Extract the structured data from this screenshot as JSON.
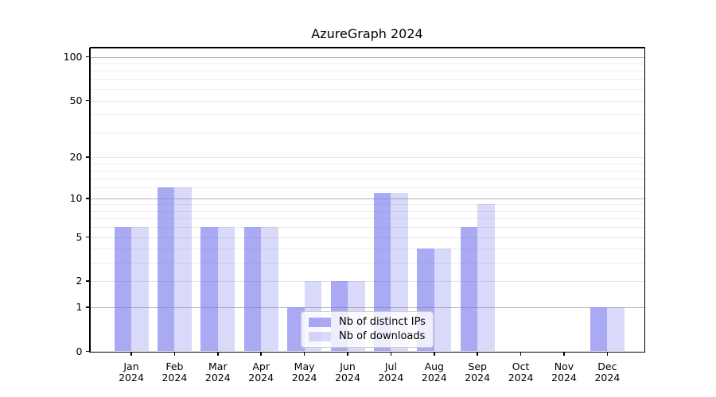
{
  "chart_data": {
    "type": "bar",
    "title": "AzureGraph 2024",
    "categories": [
      "Jan",
      "Feb",
      "Mar",
      "Apr",
      "May",
      "Jun",
      "Jul",
      "Aug",
      "Sep",
      "Oct",
      "Nov",
      "Dec"
    ],
    "year_label": "2024",
    "series": [
      {
        "name": "Nb of distinct IPs",
        "color": "rgba(116,116,238,0.62)",
        "values": [
          6,
          12,
          6,
          6,
          1,
          2,
          11,
          4,
          6,
          0,
          0,
          1
        ]
      },
      {
        "name": "Nb of downloads",
        "color": "rgba(116,116,238,0.27)",
        "values": [
          6,
          12,
          6,
          6,
          2,
          2,
          11,
          4,
          9,
          0,
          0,
          1
        ]
      }
    ],
    "xlabel": "",
    "ylabel": "",
    "y_ticks": [
      0,
      1,
      2,
      5,
      10,
      20,
      50,
      100
    ],
    "y_scale": "log1p",
    "ylim": [
      0,
      115
    ],
    "minor_gridlines": [
      3,
      4,
      6,
      7,
      8,
      9,
      12,
      14,
      16,
      18,
      30,
      40,
      60,
      70,
      80,
      90
    ],
    "grid": true,
    "legend_position": "lower center"
  },
  "colors": {
    "background": "#ffffff",
    "spine": "#000000",
    "grid_major": "#b3b3b3",
    "grid_labeled": "#e4e4e4",
    "grid_minor": "#ededed",
    "text": "#000000",
    "legend_border": "#cccccc",
    "legend_background": "rgba(255,255,255,0.8)"
  }
}
